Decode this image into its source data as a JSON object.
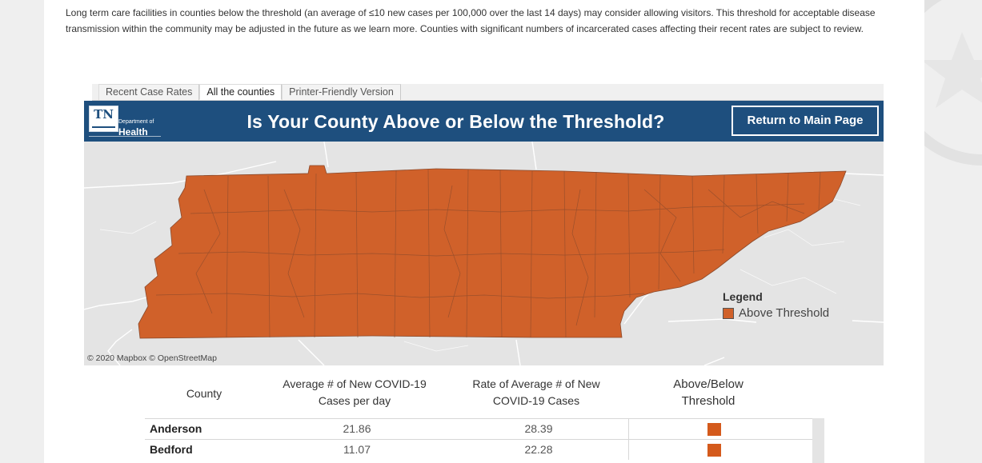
{
  "intro_text": "Long term care facilities in counties below the threshold (an average of ≤10 new cases per 100,000 over the last 14 days) may consider allowing visitors. This threshold for acceptable disease transmission within the community may be adjusted in the future as we learn more. Counties with significant numbers of incarcerated cases affecting their recent rates are subject to review.",
  "tabs": [
    {
      "label": "Recent Case Rates",
      "active": false
    },
    {
      "label": "All the counties",
      "active": true
    },
    {
      "label": "Printer-Friendly Version",
      "active": false
    }
  ],
  "banner": {
    "logo_mark": "TN",
    "logo_dept": "Department of",
    "logo_health": "Health",
    "title": "Is Your County Above or Below the Threshold?",
    "return_button": "Return to Main Page"
  },
  "map": {
    "attribution": "© 2020 Mapbox © OpenStreetMap",
    "state_fill": "#d0612a",
    "legend": {
      "title": "Legend",
      "item": "Above Threshold"
    }
  },
  "table": {
    "headers": {
      "county": "County",
      "avg": "Average # of New COVID-19 Cases per day",
      "rate": "Rate of Average # of New COVID-19 Cases",
      "threshold": "Above/Below Threshold"
    },
    "rows": [
      {
        "county": "Anderson",
        "avg": "21.86",
        "rate": "28.39",
        "status": "Above Threshold"
      },
      {
        "county": "Bedford",
        "avg": "11.07",
        "rate": "22.28",
        "status": "Above Threshold"
      }
    ],
    "flag_color": "#d45a1c"
  }
}
